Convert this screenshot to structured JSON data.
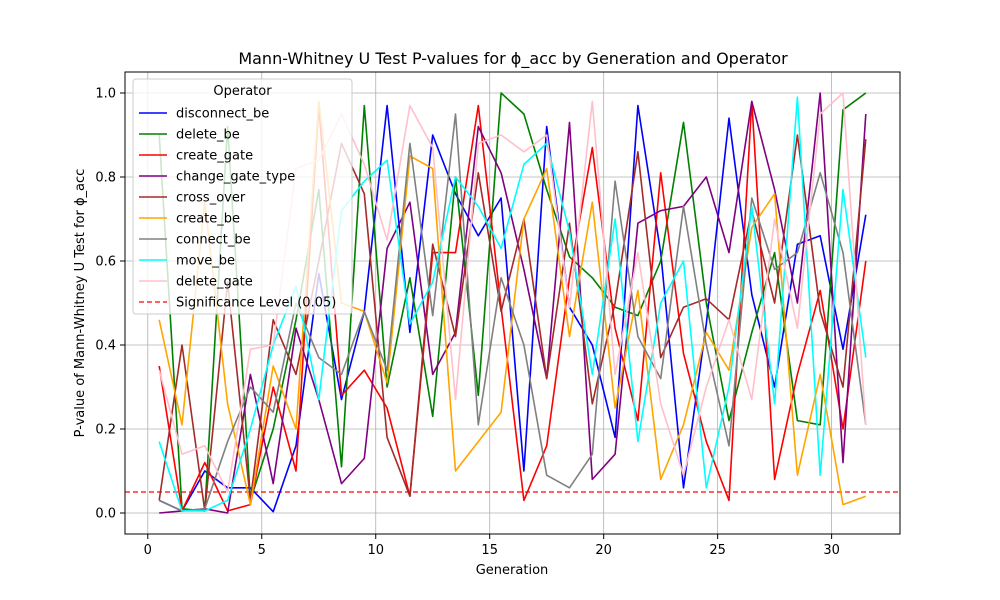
{
  "chart_data": {
    "type": "line",
    "title": "Mann-Whitney U Test P-values for ϕ_acc by Generation and Operator",
    "xlabel": "Generation",
    "ylabel": "P-value of Mann-Whitney U Test for ϕ_acc",
    "xlim": [
      -1.0,
      33.0
    ],
    "ylim": [
      -0.05,
      1.05
    ],
    "xticks": [
      0,
      5,
      10,
      15,
      20,
      25,
      30
    ],
    "xtick_labels": [
      "0",
      "5",
      "10",
      "15",
      "20",
      "25",
      "30"
    ],
    "yticks": [
      0.0,
      0.2,
      0.4,
      0.6,
      0.8,
      1.0
    ],
    "ytick_labels": [
      "0.0",
      "0.2",
      "0.4",
      "0.6",
      "0.8",
      "1.0"
    ],
    "grid": true,
    "legend_title": "Operator",
    "legend_position": "upper-left",
    "significance": {
      "y": 0.05,
      "label": "Significance Level (0.05)",
      "color": "#ff0000",
      "style": "dashed"
    },
    "x": [
      0.5,
      1.5,
      2.5,
      3.5,
      4.5,
      5.5,
      6.5,
      7.5,
      8.5,
      9.5,
      10.5,
      11.5,
      12.5,
      13.5,
      14.5,
      15.5,
      16.5,
      17.5,
      18.5,
      19.5,
      20.5,
      21.5,
      22.5,
      23.5,
      24.5,
      25.5,
      26.5,
      27.5,
      28.5,
      29.5,
      30.5,
      31.5
    ],
    "series": [
      {
        "name": "disconnect_be",
        "color": "#0000ff",
        "values": [
          0.03,
          0.005,
          0.1,
          0.06,
          0.06,
          0.003,
          0.16,
          0.57,
          0.27,
          0.48,
          0.97,
          0.43,
          0.9,
          0.76,
          0.66,
          0.75,
          0.1,
          0.92,
          0.49,
          0.4,
          0.18,
          0.97,
          0.62,
          0.06,
          0.45,
          0.94,
          0.52,
          0.3,
          0.64,
          0.66,
          0.39,
          0.71
        ]
      },
      {
        "name": "delete_be",
        "color": "#008000",
        "values": [
          0.9,
          0.01,
          0.005,
          0.92,
          0.03,
          0.2,
          0.46,
          0.77,
          0.11,
          0.97,
          0.3,
          0.56,
          0.23,
          0.8,
          0.28,
          1.0,
          0.95,
          0.77,
          0.61,
          0.56,
          0.49,
          0.47,
          0.6,
          0.93,
          0.5,
          0.22,
          0.43,
          0.62,
          0.22,
          0.21,
          0.96,
          1.0
        ]
      },
      {
        "name": "create_gate",
        "color": "#ff0000",
        "values": [
          0.35,
          0.005,
          0.12,
          0.005,
          0.02,
          0.3,
          0.1,
          0.97,
          0.28,
          0.34,
          0.25,
          0.04,
          0.62,
          0.62,
          0.97,
          0.49,
          0.03,
          0.16,
          0.56,
          0.87,
          0.44,
          0.22,
          0.81,
          0.38,
          0.17,
          0.03,
          0.98,
          0.08,
          0.33,
          0.53,
          0.2,
          0.6
        ]
      },
      {
        "name": "change_gate_type",
        "color": "#800080",
        "values": [
          0.0,
          0.005,
          0.01,
          0.0,
          0.33,
          0.07,
          0.44,
          0.27,
          0.07,
          0.13,
          0.63,
          0.74,
          0.33,
          0.43,
          0.92,
          0.81,
          0.58,
          0.32,
          0.93,
          0.08,
          0.14,
          0.69,
          0.72,
          0.73,
          0.8,
          0.62,
          0.98,
          0.77,
          0.5,
          1.0,
          0.12,
          0.95
        ]
      },
      {
        "name": "cross_over",
        "color": "#a52a2a",
        "values": [
          0.03,
          0.4,
          0.005,
          0.55,
          0.03,
          0.46,
          0.33,
          0.6,
          0.88,
          0.76,
          0.18,
          0.04,
          0.64,
          0.42,
          0.81,
          0.48,
          0.7,
          0.32,
          0.69,
          0.26,
          0.5,
          0.86,
          0.37,
          0.49,
          0.51,
          0.46,
          0.72,
          0.5,
          0.9,
          0.48,
          0.3,
          0.89
        ]
      },
      {
        "name": "create_be",
        "color": "#ffa500",
        "values": [
          0.46,
          0.21,
          0.74,
          0.26,
          0.02,
          0.35,
          0.2,
          0.98,
          0.5,
          0.48,
          0.31,
          0.85,
          0.82,
          0.1,
          0.17,
          0.24,
          0.7,
          0.82,
          0.42,
          0.74,
          0.25,
          0.53,
          0.08,
          0.21,
          0.43,
          0.34,
          0.68,
          0.76,
          0.09,
          0.33,
          0.02,
          0.04
        ]
      },
      {
        "name": "connect_be",
        "color": "#808080",
        "values": [
          0.03,
          0.005,
          0.01,
          0.17,
          0.3,
          0.24,
          0.5,
          0.37,
          0.33,
          0.48,
          0.34,
          0.88,
          0.47,
          0.95,
          0.21,
          0.56,
          0.4,
          0.09,
          0.06,
          0.14,
          0.79,
          0.42,
          0.32,
          0.73,
          0.4,
          0.16,
          0.75,
          0.58,
          0.62,
          0.81,
          0.62,
          0.21
        ]
      },
      {
        "name": "move_be",
        "color": "#00ffff",
        "values": [
          0.17,
          0.005,
          0.005,
          0.03,
          0.2,
          0.4,
          0.54,
          0.27,
          0.72,
          0.79,
          0.84,
          0.45,
          0.55,
          0.8,
          0.73,
          0.63,
          0.83,
          0.88,
          0.67,
          0.33,
          0.7,
          0.17,
          0.5,
          0.6,
          0.06,
          0.3,
          0.73,
          0.26,
          0.99,
          0.09,
          0.77,
          0.37
        ]
      },
      {
        "name": "delete_gate",
        "color": "#ffc0cb",
        "values": [
          0.34,
          0.14,
          0.16,
          0.05,
          0.39,
          0.4,
          0.82,
          0.84,
          0.95,
          0.83,
          0.65,
          0.97,
          0.87,
          0.27,
          0.88,
          0.9,
          0.86,
          0.9,
          0.49,
          0.98,
          0.33,
          0.62,
          0.26,
          0.09,
          0.3,
          0.46,
          0.27,
          0.7,
          0.44,
          0.95,
          1.0,
          0.21
        ]
      }
    ]
  }
}
